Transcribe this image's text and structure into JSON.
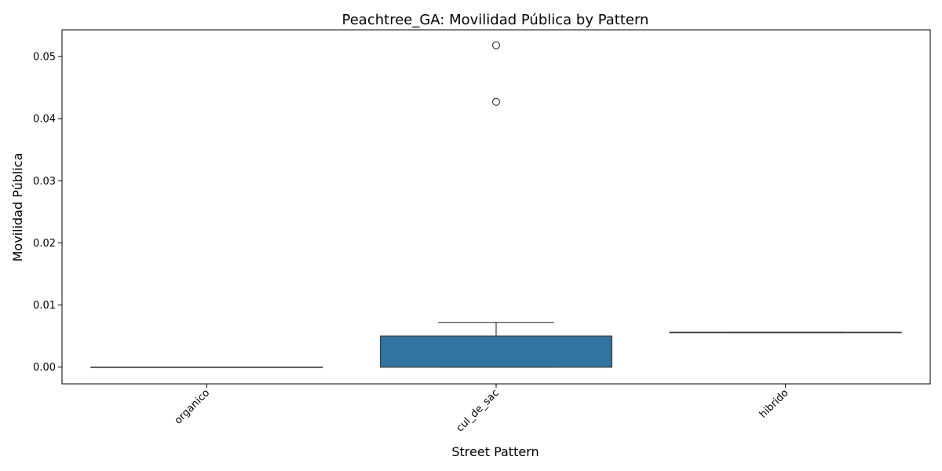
{
  "chart_data": {
    "type": "box",
    "title": "Peachtree_GA: Movilidad Pública by Pattern",
    "xlabel": "Street Pattern",
    "ylabel": "Movilidad Pública",
    "ylim": [
      -0.0027,
      0.0543
    ],
    "yticks": [
      "0.00",
      "0.01",
      "0.02",
      "0.03",
      "0.04",
      "0.05"
    ],
    "grid": false,
    "legend": "none",
    "categories": [
      "organico",
      "cul_de_sac",
      "hibrido"
    ],
    "boxes": [
      {
        "name": "organico",
        "whisker_low": 0.0,
        "q1": 0.0,
        "median": 0.0,
        "q3": 0.0,
        "whisker_high": 0.0,
        "outliers": [],
        "color": "#1f77b4"
      },
      {
        "name": "cul_de_sac",
        "whisker_low": 0.0,
        "q1": 0.0,
        "median": 0.0,
        "q3": 0.005,
        "whisker_high": 0.0072,
        "outliers": [
          0.0427,
          0.0518
        ],
        "color": "#3274a1"
      },
      {
        "name": "hibrido",
        "whisker_low": 0.0056,
        "q1": 0.0056,
        "median": 0.0056,
        "q3": 0.0056,
        "whisker_high": 0.0056,
        "outliers": [],
        "color": "#1f77b4"
      }
    ]
  }
}
